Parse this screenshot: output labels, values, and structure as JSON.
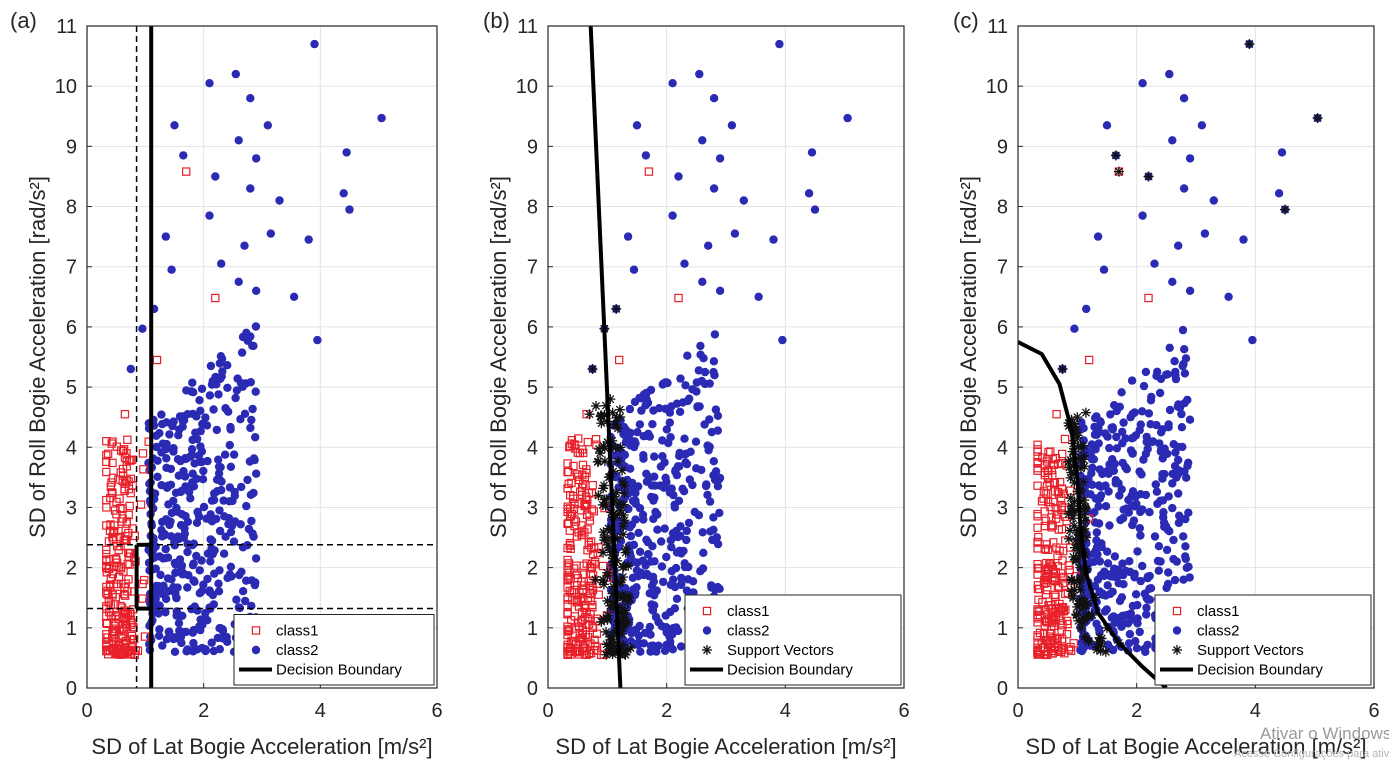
{
  "watermark": {
    "line1": "Ativar o Windows",
    "line2": "Acesse Configurações para ativar o Windows."
  },
  "colors": {
    "class1": "#e8202a",
    "class2": "#2a2ab4",
    "support_vector": "#111111",
    "boundary": "#000000",
    "grid": "#e3e3e3"
  },
  "chart_data": [
    {
      "panel": "(a)",
      "type": "scatter",
      "xlabel": "SD of Lat Bogie Acceleration [m/s²]",
      "ylabel": "SD of Roll Bogie Acceleration [rad/s²]",
      "xlim": [
        0,
        6
      ],
      "ylim": [
        0,
        11
      ],
      "xticks": [
        "0",
        "2",
        "4",
        "6"
      ],
      "yticks": [
        "0",
        "1",
        "2",
        "3",
        "4",
        "5",
        "6",
        "7",
        "8",
        "9",
        "10",
        "11"
      ],
      "grid": true,
      "legend_position": "bottom-right",
      "legend": [
        "class1",
        "class2",
        "Decision Boundary"
      ],
      "boundary_type": "tree",
      "boundary": [
        [
          1.1,
          0
        ],
        [
          1.1,
          11
        ]
      ],
      "boundary_extra": [
        [
          [
            0.85,
            1.32
          ],
          [
            1.1,
            1.32
          ]
        ],
        [
          [
            0.85,
            1.32
          ],
          [
            0.85,
            2.38
          ]
        ],
        [
          [
            0.85,
            2.38
          ],
          [
            1.1,
            2.38
          ]
        ]
      ],
      "guides": {
        "vertical": [
          0.85
        ],
        "horizontal": [
          1.32,
          2.38
        ]
      },
      "cluster_seed": 11,
      "class1_outliers": [
        [
          1.7,
          8.58
        ],
        [
          2.2,
          6.48
        ],
        [
          1.2,
          5.45
        ],
        [
          0.65,
          4.55
        ]
      ],
      "class2_outliers": [
        [
          3.9,
          10.7
        ],
        [
          5.05,
          9.47
        ],
        [
          2.55,
          10.2
        ],
        [
          2.1,
          10.05
        ],
        [
          1.5,
          9.35
        ],
        [
          4.45,
          8.9
        ],
        [
          4.4,
          8.22
        ],
        [
          4.5,
          7.95
        ],
        [
          2.8,
          9.8
        ],
        [
          3.1,
          9.35
        ],
        [
          2.6,
          9.1
        ],
        [
          2.9,
          8.8
        ],
        [
          1.65,
          8.85
        ],
        [
          2.2,
          8.5
        ],
        [
          2.8,
          8.3
        ],
        [
          3.3,
          8.1
        ],
        [
          2.1,
          7.85
        ],
        [
          1.35,
          7.5
        ],
        [
          3.15,
          7.55
        ],
        [
          3.8,
          7.45
        ],
        [
          2.7,
          7.35
        ],
        [
          2.3,
          7.05
        ],
        [
          1.45,
          6.95
        ],
        [
          2.9,
          6.6
        ],
        [
          3.55,
          6.5
        ],
        [
          2.6,
          6.75
        ],
        [
          3.95,
          5.78
        ],
        [
          1.15,
          6.3
        ],
        [
          0.95,
          5.97
        ],
        [
          0.75,
          5.3
        ]
      ],
      "support_vectors": []
    },
    {
      "panel": "(b)",
      "type": "scatter",
      "xlabel": "SD of Lat Bogie Acceleration [m/s²]",
      "ylabel": "SD of Roll Bogie Acceleration [rad/s²]",
      "xlim": [
        0,
        6
      ],
      "ylim": [
        0,
        11
      ],
      "xticks": [
        "0",
        "2",
        "4",
        "6"
      ],
      "yticks": [
        "0",
        "1",
        "2",
        "3",
        "4",
        "5",
        "6",
        "7",
        "8",
        "9",
        "10",
        "11"
      ],
      "grid": true,
      "legend_position": "bottom-right",
      "legend": [
        "class1",
        "class2",
        "Support Vectors",
        "Decision Boundary"
      ],
      "boundary_type": "linear",
      "boundary": [
        [
          0.72,
          11
        ],
        [
          1.22,
          0
        ]
      ],
      "boundary_extra": [],
      "guides": {
        "vertical": [],
        "horizontal": []
      },
      "cluster_seed": 22,
      "class1_outliers": [
        [
          1.7,
          8.58
        ],
        [
          2.2,
          6.48
        ],
        [
          1.2,
          5.45
        ],
        [
          0.65,
          4.55
        ]
      ],
      "class2_outliers": [
        [
          3.9,
          10.7
        ],
        [
          5.05,
          9.47
        ],
        [
          2.55,
          10.2
        ],
        [
          2.1,
          10.05
        ],
        [
          1.5,
          9.35
        ],
        [
          4.45,
          8.9
        ],
        [
          4.4,
          8.22
        ],
        [
          4.5,
          7.95
        ],
        [
          2.8,
          9.8
        ],
        [
          3.1,
          9.35
        ],
        [
          2.6,
          9.1
        ],
        [
          2.9,
          8.8
        ],
        [
          1.65,
          8.85
        ],
        [
          2.2,
          8.5
        ],
        [
          2.8,
          8.3
        ],
        [
          3.3,
          8.1
        ],
        [
          2.1,
          7.85
        ],
        [
          1.35,
          7.5
        ],
        [
          3.15,
          7.55
        ],
        [
          3.8,
          7.45
        ],
        [
          2.7,
          7.35
        ],
        [
          2.3,
          7.05
        ],
        [
          1.45,
          6.95
        ],
        [
          2.9,
          6.6
        ],
        [
          3.55,
          6.5
        ],
        [
          2.6,
          6.75
        ],
        [
          3.95,
          5.78
        ],
        [
          1.15,
          6.3
        ],
        [
          0.95,
          5.97
        ],
        [
          0.75,
          5.3
        ]
      ],
      "support_vectors": [
        [
          1.15,
          6.3
        ],
        [
          0.95,
          5.97
        ],
        [
          0.75,
          5.3
        ],
        [
          1.05,
          4.8
        ],
        [
          0.9,
          4.4
        ],
        [
          1.1,
          3.6
        ],
        [
          0.85,
          3.2
        ],
        [
          1.2,
          2.9
        ],
        [
          0.95,
          2.5
        ],
        [
          1.1,
          2.1
        ],
        [
          0.8,
          1.8
        ],
        [
          1.25,
          1.5
        ],
        [
          0.9,
          1.1
        ],
        [
          1.05,
          0.8
        ],
        [
          1.2,
          0.6
        ],
        [
          0.7,
          4.55
        ]
      ]
    },
    {
      "panel": "(c)",
      "type": "scatter",
      "xlabel": "SD of Lat Bogie Acceleration [m/s²]",
      "ylabel": "SD of Roll Bogie Acceleration [rad/s²]",
      "xlim": [
        0,
        6
      ],
      "ylim": [
        0,
        11
      ],
      "xticks": [
        "0",
        "2",
        "4",
        "6"
      ],
      "yticks": [
        "0",
        "1",
        "2",
        "3",
        "4",
        "5",
        "6",
        "7",
        "8",
        "9",
        "10",
        "11"
      ],
      "grid": true,
      "legend_position": "bottom-right",
      "legend": [
        "class1",
        "class2",
        "Support Vectors",
        "Decision Boundary"
      ],
      "boundary_type": "curve",
      "boundary": [
        [
          0,
          5.75
        ],
        [
          0.4,
          5.55
        ],
        [
          0.7,
          5.05
        ],
        [
          0.9,
          4.3
        ],
        [
          1.0,
          3.5
        ],
        [
          1.05,
          2.7
        ],
        [
          1.15,
          1.9
        ],
        [
          1.35,
          1.25
        ],
        [
          1.7,
          0.75
        ],
        [
          2.1,
          0.35
        ],
        [
          2.5,
          0.0
        ]
      ],
      "boundary_extra": [],
      "guides": {
        "vertical": [],
        "horizontal": []
      },
      "cluster_seed": 33,
      "class1_outliers": [
        [
          1.7,
          8.58
        ],
        [
          2.2,
          6.48
        ],
        [
          1.2,
          5.45
        ],
        [
          0.65,
          4.55
        ]
      ],
      "class2_outliers": [
        [
          3.9,
          10.7
        ],
        [
          5.05,
          9.47
        ],
        [
          2.55,
          10.2
        ],
        [
          2.1,
          10.05
        ],
        [
          1.5,
          9.35
        ],
        [
          4.45,
          8.9
        ],
        [
          4.4,
          8.22
        ],
        [
          4.5,
          7.95
        ],
        [
          2.8,
          9.8
        ],
        [
          3.1,
          9.35
        ],
        [
          2.6,
          9.1
        ],
        [
          2.9,
          8.8
        ],
        [
          1.65,
          8.85
        ],
        [
          2.2,
          8.5
        ],
        [
          2.8,
          8.3
        ],
        [
          3.3,
          8.1
        ],
        [
          2.1,
          7.85
        ],
        [
          1.35,
          7.5
        ],
        [
          3.15,
          7.55
        ],
        [
          3.8,
          7.45
        ],
        [
          2.7,
          7.35
        ],
        [
          2.3,
          7.05
        ],
        [
          1.45,
          6.95
        ],
        [
          2.9,
          6.6
        ],
        [
          3.55,
          6.5
        ],
        [
          2.6,
          6.75
        ],
        [
          3.95,
          5.78
        ],
        [
          1.15,
          6.3
        ],
        [
          0.95,
          5.97
        ],
        [
          0.75,
          5.3
        ]
      ],
      "support_vectors": [
        [
          3.9,
          10.7
        ],
        [
          5.05,
          9.47
        ],
        [
          1.65,
          8.85
        ],
        [
          1.7,
          8.58
        ],
        [
          2.2,
          8.5
        ],
        [
          4.5,
          7.95
        ],
        [
          0.75,
          5.3
        ],
        [
          1.0,
          4.5
        ],
        [
          1.1,
          3.8
        ],
        [
          0.95,
          3.1
        ],
        [
          1.15,
          2.5
        ],
        [
          1.05,
          2.0
        ],
        [
          1.3,
          1.5
        ],
        [
          1.5,
          1.0
        ],
        [
          1.7,
          0.75
        ],
        [
          1.2,
          1.2
        ]
      ]
    }
  ]
}
